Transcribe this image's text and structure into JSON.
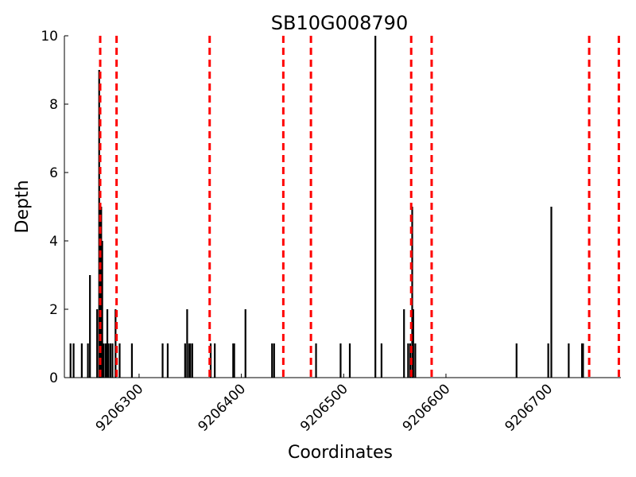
{
  "chart_data": {
    "type": "bar",
    "title": "SB10G008790",
    "xlabel": "Coordinates",
    "ylabel": "Depth",
    "xlim": [
      9206227,
      9206771
    ],
    "ylim": [
      0,
      10
    ],
    "xticks": [
      9206300,
      9206400,
      9206500,
      9206600,
      9206700
    ],
    "yticks": [
      0,
      2,
      4,
      6,
      8,
      10
    ],
    "grid": false,
    "colors": {
      "bars": "#000000",
      "markers": "#ff0000",
      "axes": "#000000"
    },
    "series": [
      {
        "x": [
          9206233,
          9206236,
          9206244,
          9206250,
          9206252,
          9206259,
          9206261,
          9206262,
          9206263,
          9206264,
          9206265,
          9206267,
          9206268,
          9206269,
          9206270,
          9206272,
          9206274,
          9206277,
          9206281,
          9206293,
          9206323,
          9206328,
          9206345,
          9206347,
          9206349,
          9206350,
          9206352,
          9206370,
          9206374,
          9206392,
          9206393,
          9206404,
          9206430,
          9206432,
          9206473,
          9206497,
          9206506,
          9206531,
          9206537,
          9206559,
          9206563,
          9206565,
          9206567,
          9206568,
          9206570,
          9206669,
          9206700,
          9206703,
          9206720,
          9206733,
          9206734
        ],
        "values": [
          1,
          1,
          1,
          1,
          3,
          2,
          9,
          5,
          5,
          4,
          1,
          1,
          1,
          2,
          1,
          1,
          1,
          2,
          1,
          1,
          1,
          1,
          1,
          2,
          1,
          1,
          1,
          1,
          1,
          1,
          1,
          2,
          1,
          1,
          1,
          1,
          1,
          10,
          1,
          2,
          1,
          1,
          5,
          2,
          1,
          1,
          1,
          5,
          1,
          1,
          1
        ]
      }
    ],
    "markers": [
      9206262,
      9206278,
      9206369,
      9206441,
      9206468,
      9206566,
      9206586,
      9206740,
      9206769
    ]
  }
}
